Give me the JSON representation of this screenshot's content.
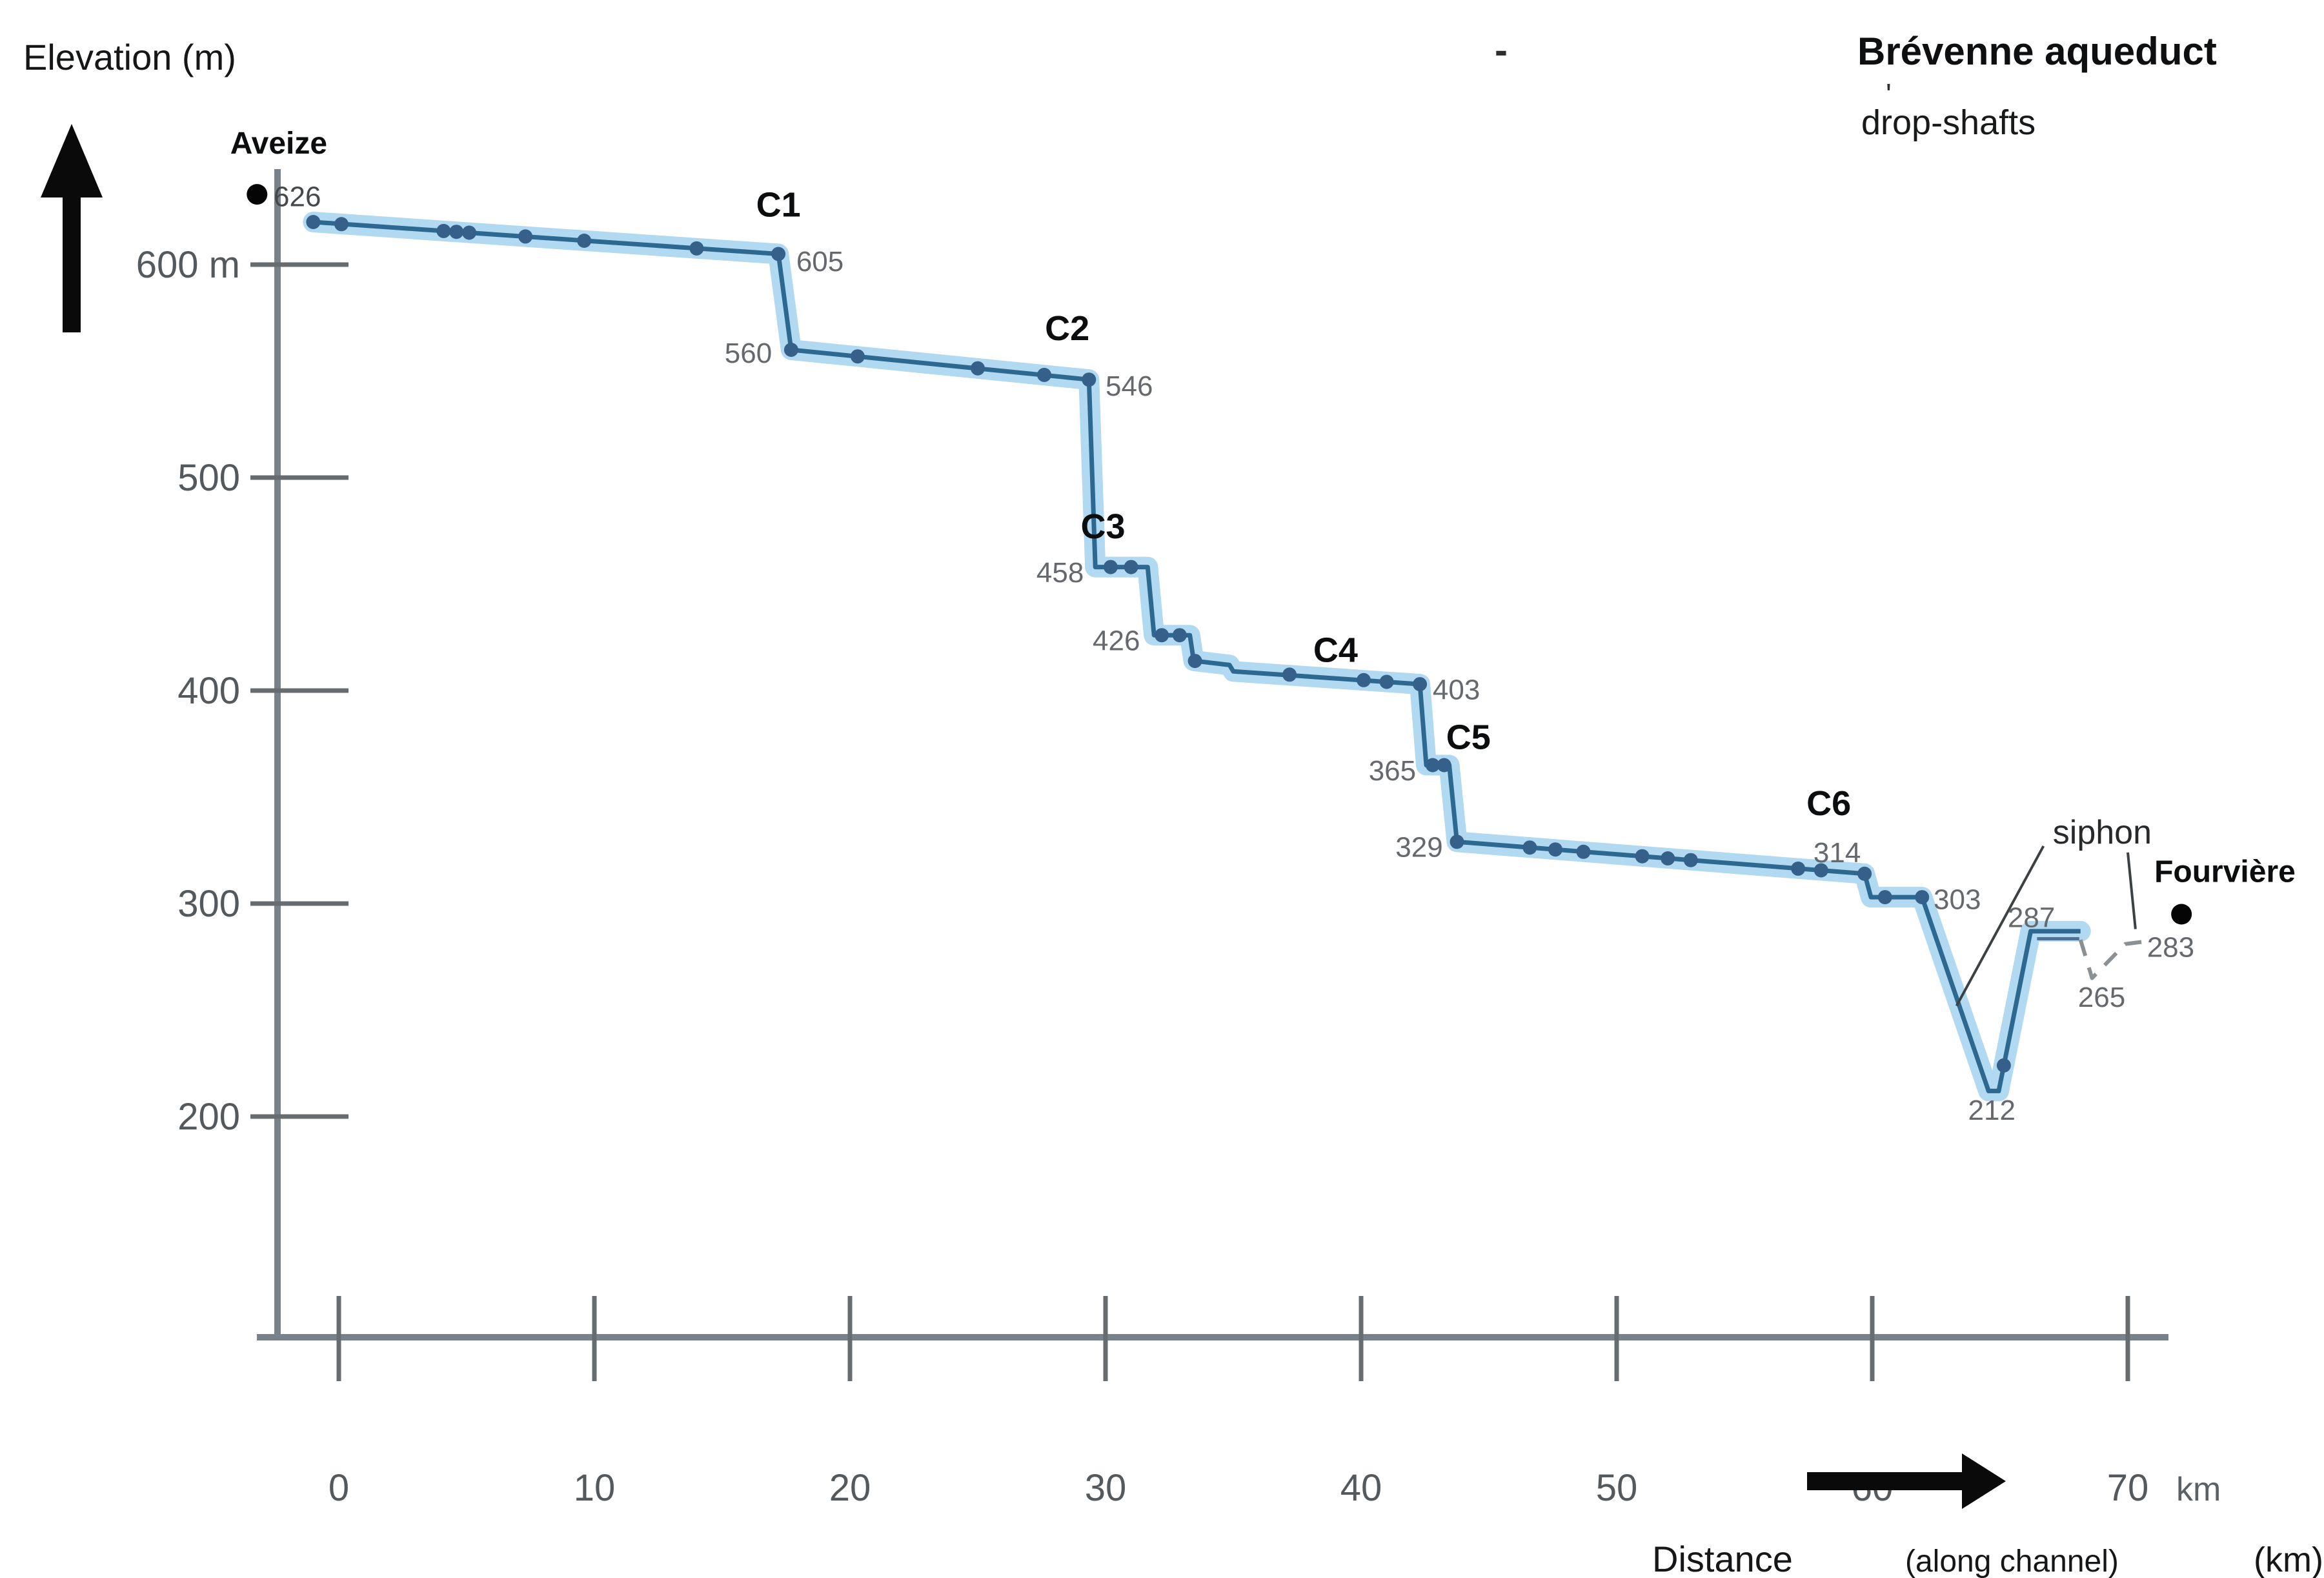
{
  "figure": {
    "title": "Brévenne aqueduct",
    "subtitle": "drop-shafts",
    "artifacts": {
      "dash": "-",
      "apostrophe": "'"
    }
  },
  "chart_data": {
    "type": "line",
    "title": "Brévenne aqueduct drop-shafts",
    "ylabel": "Elevation (m)",
    "xlabel": "Distance (along channel) (km)",
    "xlabel_parts": {
      "main": "Distance",
      "qualifier": "(along channel)",
      "unit": "(km)"
    },
    "x_unit": "km",
    "xlim": [
      0,
      72
    ],
    "ylim": [
      150,
      650
    ],
    "grid": false,
    "legend_position": "none",
    "x_ticks": [
      0,
      10,
      20,
      30,
      40,
      50,
      60,
      70
    ],
    "y_ticks": [
      {
        "value": 600,
        "label": "600 m"
      },
      {
        "value": 500,
        "label": "500"
      },
      {
        "value": 400,
        "label": "400"
      },
      {
        "value": 300,
        "label": "300"
      },
      {
        "value": 200,
        "label": "200"
      }
    ],
    "series": [
      {
        "name": "channel-profile-solid",
        "points": [
          [
            -1.0,
            620
          ],
          [
            17.2,
            605
          ],
          [
            17.7,
            560
          ],
          [
            29.35,
            546
          ],
          [
            29.6,
            458
          ],
          [
            31.65,
            458
          ],
          [
            31.9,
            426
          ],
          [
            33.3,
            426
          ],
          [
            33.45,
            414
          ],
          [
            34.85,
            412
          ],
          [
            35.0,
            409
          ],
          [
            42.3,
            403
          ],
          [
            42.55,
            365
          ],
          [
            43.45,
            365
          ],
          [
            43.75,
            329
          ],
          [
            59.7,
            314
          ],
          [
            59.95,
            303
          ],
          [
            61.95,
            303
          ],
          [
            64.55,
            212
          ],
          [
            64.95,
            212
          ],
          [
            66.2,
            287
          ],
          [
            68.15,
            287
          ]
        ]
      },
      {
        "name": "siphon-under-ledge-line",
        "points": [
          [
            66.45,
            283.5
          ],
          [
            68.1,
            283.5
          ]
        ]
      },
      {
        "name": "siphon-dashed-continuation",
        "points": [
          [
            68.15,
            283
          ],
          [
            68.6,
            265
          ],
          [
            69.9,
            281
          ],
          [
            70.55,
            282
          ]
        ]
      }
    ],
    "markers": [
      [
        -1.0,
        620
      ],
      [
        0.1,
        619
      ],
      [
        4.1,
        615.8
      ],
      [
        4.6,
        615.4
      ],
      [
        5.1,
        615.0
      ],
      [
        7.3,
        613.2
      ],
      [
        9.6,
        611.2
      ],
      [
        14.0,
        607.6
      ],
      [
        17.2,
        605
      ],
      [
        17.7,
        560
      ],
      [
        20.3,
        556.9
      ],
      [
        25.0,
        551.3
      ],
      [
        27.6,
        548.2
      ],
      [
        29.35,
        546
      ],
      [
        30.2,
        458
      ],
      [
        31.0,
        458
      ],
      [
        32.2,
        426
      ],
      [
        32.9,
        426
      ],
      [
        33.5,
        413.9
      ],
      [
        37.2,
        407.5
      ],
      [
        40.1,
        404.9
      ],
      [
        41.0,
        404.1
      ],
      [
        42.3,
        403
      ],
      [
        42.8,
        365
      ],
      [
        43.25,
        365
      ],
      [
        43.75,
        329
      ],
      [
        46.6,
        326.3
      ],
      [
        47.6,
        325.4
      ],
      [
        48.7,
        324.3
      ],
      [
        51.0,
        322.2
      ],
      [
        52.0,
        321.2
      ],
      [
        52.9,
        320.4
      ],
      [
        57.1,
        316.4
      ],
      [
        58.0,
        315.6
      ],
      [
        59.7,
        314
      ],
      [
        60.5,
        303
      ],
      [
        61.95,
        303
      ],
      [
        65.15,
        224
      ]
    ],
    "drop_shafts": [
      {
        "id": "C1",
        "head_elev": 605,
        "foot_elev": 560,
        "km": 17.2,
        "label_km": 17.2,
        "label_elev": 628
      },
      {
        "id": "C2",
        "head_elev": 546,
        "foot_elev": 458,
        "km": 29.5,
        "label_km": 28.5,
        "label_elev": 570
      },
      {
        "id": "C3",
        "head_elev": 458,
        "foot_elev": 426,
        "km": 31.8,
        "label_km": 29.9,
        "label_elev": 477
      },
      {
        "id": "C4",
        "head_elev": 403,
        "foot_elev": 365,
        "km": 42.4,
        "label_km": 39.0,
        "label_elev": 419
      },
      {
        "id": "C5",
        "head_elev": 365,
        "foot_elev": 329,
        "km": 43.6,
        "label_km": 44.2,
        "label_elev": 378
      },
      {
        "id": "C6",
        "head_elev": 314,
        "foot_elev": 303,
        "km": 59.8,
        "label_km": 58.3,
        "label_elev": 347
      }
    ],
    "point_labels": [
      {
        "text": "605",
        "km": 17.9,
        "elev": 601.5,
        "anchor": "start"
      },
      {
        "text": "560",
        "km": 16.95,
        "elev": 558.5,
        "anchor": "end"
      },
      {
        "text": "546",
        "km": 30.0,
        "elev": 543.0,
        "anchor": "start"
      },
      {
        "text": "458",
        "km": 29.15,
        "elev": 455.5,
        "anchor": "end"
      },
      {
        "text": "426",
        "km": 31.35,
        "elev": 423.5,
        "anchor": "end"
      },
      {
        "text": "403",
        "km": 42.8,
        "elev": 400.5,
        "anchor": "start"
      },
      {
        "text": "365",
        "km": 42.15,
        "elev": 362.5,
        "anchor": "end"
      },
      {
        "text": "329",
        "km": 43.2,
        "elev": 326.5,
        "anchor": "end"
      },
      {
        "text": "314",
        "km": 57.7,
        "elev": 324.0,
        "anchor": "start"
      },
      {
        "text": "303",
        "km": 62.4,
        "elev": 302.0,
        "anchor": "start"
      },
      {
        "text": "287",
        "km": 65.3,
        "elev": 293.5,
        "anchor": "start"
      },
      {
        "text": "212",
        "km": 63.75,
        "elev": 203.0,
        "anchor": "start"
      },
      {
        "text": "265",
        "km": 68.05,
        "elev": 256.0,
        "anchor": "start"
      },
      {
        "text": "283",
        "km": 70.75,
        "elev": 279.5,
        "anchor": "start"
      }
    ],
    "endpoints": {
      "source": {
        "name": "Aveize",
        "elevation": 626,
        "elevation_text": "626",
        "dot_km": -3.2,
        "dot_elev": 633,
        "label_km": -2.35,
        "label_elev": 657,
        "elev_label_km": -2.55,
        "elev_label_elev": 632
      },
      "destination": {
        "name": "Fourvière",
        "elevation": 283,
        "dot_km": 72.1,
        "dot_elev": 295,
        "label_km": 73.8,
        "label_elev": 315
      }
    },
    "annotations": {
      "siphon": {
        "label": "siphon",
        "km": 69.0,
        "elev": 333,
        "leaders": [
          [
            [
              66.7,
              327
            ],
            [
              63.3,
              252
            ]
          ],
          [
            [
              70.0,
              324
            ],
            [
              70.3,
              288
            ]
          ]
        ]
      }
    }
  },
  "colors": {
    "band": "#a3d2ee",
    "line": "#2d6890",
    "marker": "#35608a",
    "under_line": "#527293",
    "dashed": "#8a9094",
    "axis": "#79828a",
    "tick": "#666c70",
    "leader": "#3c4144",
    "endpoint_dot": "#050505"
  }
}
